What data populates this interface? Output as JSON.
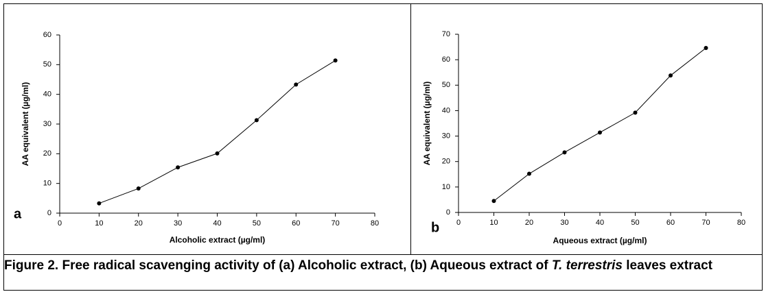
{
  "chart_data": [
    {
      "type": "line",
      "panel_label": "a",
      "x_label": "Alcoholic extract (µg/ml)",
      "y_label": "AA equivalent (µg/ml)",
      "x": [
        10,
        20,
        30,
        40,
        50,
        60,
        70
      ],
      "values": [
        3.3,
        8.3,
        15.4,
        20.1,
        31.3,
        43.3,
        51.4
      ],
      "color": "#000000",
      "xlim": [
        0,
        80
      ],
      "xticks": [
        0,
        10,
        20,
        30,
        40,
        50,
        60,
        70,
        80
      ],
      "ylim": [
        0,
        60
      ],
      "yticks": [
        0,
        10,
        20,
        30,
        40,
        50,
        60
      ],
      "grid": false
    },
    {
      "type": "line",
      "panel_label": "b",
      "x_label": "Aqueous extract  (µg/ml)",
      "y_label": "AA equivalent (µg/ml)",
      "x": [
        10,
        20,
        30,
        40,
        50,
        60,
        70
      ],
      "values": [
        4.5,
        15.2,
        23.6,
        31.4,
        39.2,
        53.8,
        64.6
      ],
      "color": "#000000",
      "xlim": [
        0,
        80
      ],
      "xticks": [
        0,
        10,
        20,
        30,
        40,
        50,
        60,
        70,
        80
      ],
      "ylim": [
        0,
        70
      ],
      "yticks": [
        0,
        10,
        20,
        30,
        40,
        50,
        60,
        70
      ],
      "grid": false
    }
  ],
  "caption": {
    "prefix": "Figure 2. Free radical scavenging activity of (a) Alcoholic extract, (b) Aqueous extract of ",
    "italic": "T. terrestris",
    "suffix": " leaves extract"
  }
}
